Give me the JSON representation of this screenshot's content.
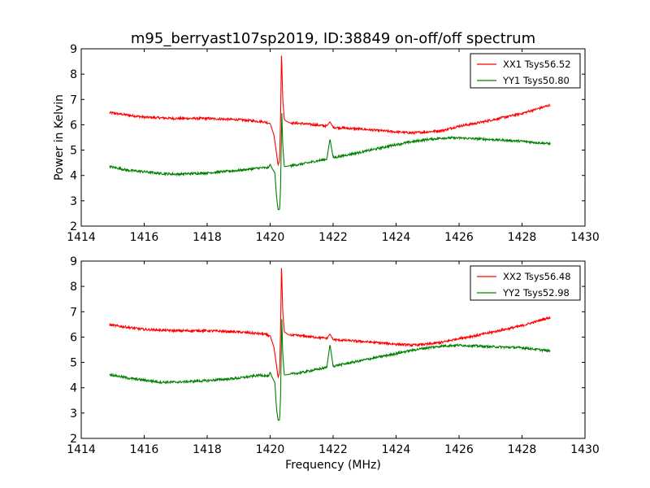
{
  "figure": {
    "title": "m95_berryast107sp2019, ID:38849 on-off/off spectrum"
  },
  "chart_data": [
    {
      "type": "line",
      "title": "m95_berryast107sp2019, ID:38849 on-off/off spectrum",
      "xlabel": "",
      "ylabel": "Power in Kelvin",
      "xlim": [
        1414,
        1430
      ],
      "ylim": [
        2,
        9
      ],
      "xticks": [
        1414,
        1416,
        1418,
        1420,
        1422,
        1424,
        1426,
        1428,
        1430
      ],
      "yticks": [
        2,
        3,
        4,
        5,
        6,
        7,
        8,
        9
      ],
      "grid": false,
      "legend": "top-right",
      "series": [
        {
          "name": "XX1 Tsys56.52",
          "color": "#ff0000",
          "points": [
            [
              1414.9,
              6.48
            ],
            [
              1415.5,
              6.38
            ],
            [
              1416,
              6.3
            ],
            [
              1417,
              6.25
            ],
            [
              1418,
              6.25
            ],
            [
              1419,
              6.2
            ],
            [
              1419.8,
              6.12
            ],
            [
              1420.0,
              6.05
            ],
            [
              1420.12,
              5.6
            ],
            [
              1420.2,
              4.9
            ],
            [
              1420.25,
              4.4
            ],
            [
              1420.3,
              4.6
            ],
            [
              1420.33,
              6.2
            ],
            [
              1420.36,
              8.9
            ],
            [
              1420.4,
              7.0
            ],
            [
              1420.45,
              6.2
            ],
            [
              1420.6,
              6.08
            ],
            [
              1421,
              6.05
            ],
            [
              1421.8,
              5.95
            ],
            [
              1421.9,
              6.12
            ],
            [
              1422,
              5.9
            ],
            [
              1423,
              5.82
            ],
            [
              1424,
              5.72
            ],
            [
              1424.5,
              5.68
            ],
            [
              1425,
              5.72
            ],
            [
              1425.5,
              5.78
            ],
            [
              1426,
              5.95
            ],
            [
              1426.5,
              6.05
            ],
            [
              1427,
              6.18
            ],
            [
              1428,
              6.45
            ],
            [
              1428.9,
              6.78
            ]
          ]
        },
        {
          "name": "YY1 Tsys50.80",
          "color": "#008000",
          "points": [
            [
              1414.9,
              4.35
            ],
            [
              1415.5,
              4.2
            ],
            [
              1416,
              4.15
            ],
            [
              1416.5,
              4.08
            ],
            [
              1417,
              4.05
            ],
            [
              1418,
              4.1
            ],
            [
              1419,
              4.2
            ],
            [
              1419.7,
              4.3
            ],
            [
              1419.95,
              4.3
            ],
            [
              1420.0,
              4.45
            ],
            [
              1420.05,
              4.3
            ],
            [
              1420.15,
              4.1
            ],
            [
              1420.2,
              3.2
            ],
            [
              1420.25,
              2.65
            ],
            [
              1420.3,
              2.65
            ],
            [
              1420.33,
              3.5
            ],
            [
              1420.37,
              6.5
            ],
            [
              1420.4,
              5.2
            ],
            [
              1420.45,
              4.35
            ],
            [
              1421,
              4.45
            ],
            [
              1421.8,
              4.65
            ],
            [
              1421.9,
              5.45
            ],
            [
              1422,
              4.7
            ],
            [
              1423,
              4.95
            ],
            [
              1424,
              5.22
            ],
            [
              1424.5,
              5.33
            ],
            [
              1425,
              5.42
            ],
            [
              1425.5,
              5.48
            ],
            [
              1426,
              5.48
            ],
            [
              1427,
              5.42
            ],
            [
              1428,
              5.35
            ],
            [
              1428.9,
              5.25
            ]
          ]
        }
      ]
    },
    {
      "type": "line",
      "title": "",
      "xlabel": "Frequency (MHz)",
      "ylabel": "",
      "xlim": [
        1414,
        1430
      ],
      "ylim": [
        2,
        9
      ],
      "xticks": [
        1414,
        1416,
        1418,
        1420,
        1422,
        1424,
        1426,
        1428,
        1430
      ],
      "yticks": [
        2,
        3,
        4,
        5,
        6,
        7,
        8,
        9
      ],
      "grid": false,
      "legend": "top-right",
      "series": [
        {
          "name": "XX2 Tsys56.48",
          "color": "#ff0000",
          "points": [
            [
              1414.9,
              6.48
            ],
            [
              1415.5,
              6.38
            ],
            [
              1416,
              6.3
            ],
            [
              1417,
              6.25
            ],
            [
              1418,
              6.25
            ],
            [
              1419,
              6.2
            ],
            [
              1419.8,
              6.12
            ],
            [
              1420.0,
              6.05
            ],
            [
              1420.12,
              5.6
            ],
            [
              1420.2,
              4.9
            ],
            [
              1420.25,
              4.4
            ],
            [
              1420.3,
              4.6
            ],
            [
              1420.33,
              6.2
            ],
            [
              1420.36,
              8.9
            ],
            [
              1420.4,
              7.0
            ],
            [
              1420.45,
              6.2
            ],
            [
              1420.6,
              6.08
            ],
            [
              1421,
              6.05
            ],
            [
              1421.8,
              5.95
            ],
            [
              1421.9,
              6.12
            ],
            [
              1422,
              5.9
            ],
            [
              1423,
              5.82
            ],
            [
              1424,
              5.72
            ],
            [
              1424.5,
              5.68
            ],
            [
              1425,
              5.72
            ],
            [
              1425.5,
              5.8
            ],
            [
              1426,
              5.95
            ],
            [
              1426.5,
              6.05
            ],
            [
              1427,
              6.18
            ],
            [
              1428,
              6.45
            ],
            [
              1428.9,
              6.78
            ]
          ]
        },
        {
          "name": "YY2 Tsys52.98",
          "color": "#008000",
          "points": [
            [
              1414.9,
              4.52
            ],
            [
              1415.5,
              4.38
            ],
            [
              1416,
              4.3
            ],
            [
              1416.5,
              4.22
            ],
            [
              1417,
              4.22
            ],
            [
              1418,
              4.28
            ],
            [
              1419,
              4.38
            ],
            [
              1419.7,
              4.5
            ],
            [
              1419.95,
              4.45
            ],
            [
              1420.0,
              4.62
            ],
            [
              1420.05,
              4.45
            ],
            [
              1420.15,
              4.2
            ],
            [
              1420.2,
              3.2
            ],
            [
              1420.25,
              2.72
            ],
            [
              1420.3,
              2.72
            ],
            [
              1420.33,
              3.6
            ],
            [
              1420.37,
              6.75
            ],
            [
              1420.4,
              5.3
            ],
            [
              1420.45,
              4.5
            ],
            [
              1421,
              4.6
            ],
            [
              1421.8,
              4.8
            ],
            [
              1421.9,
              5.72
            ],
            [
              1422,
              4.85
            ],
            [
              1423,
              5.1
            ],
            [
              1424,
              5.35
            ],
            [
              1424.5,
              5.48
            ],
            [
              1425,
              5.58
            ],
            [
              1425.5,
              5.65
            ],
            [
              1426,
              5.68
            ],
            [
              1427,
              5.62
            ],
            [
              1428,
              5.58
            ],
            [
              1428.9,
              5.45
            ]
          ]
        }
      ]
    }
  ]
}
